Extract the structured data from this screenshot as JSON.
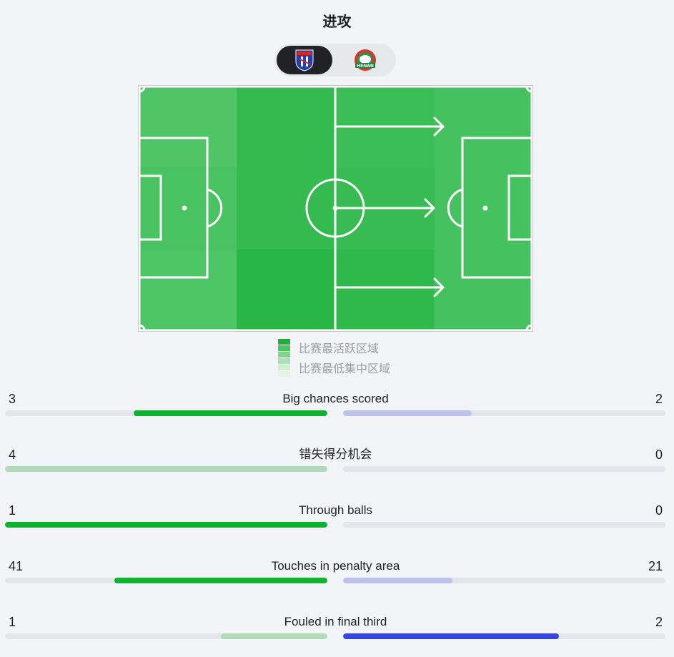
{
  "title": "进攻",
  "teams": {
    "home": {
      "logo_text": "SH",
      "logo_icon": "shanghai-shenhua-crest-icon",
      "active": true
    },
    "away": {
      "logo_text": "HENAN",
      "logo_icon": "henan-fc-crest-icon",
      "active": false
    }
  },
  "pitch": {
    "zone_activity": [
      [
        0.45,
        0.85,
        0.75,
        0.6
      ],
      [
        0.55,
        0.85,
        0.8,
        0.6
      ],
      [
        0.5,
        1.0,
        0.9,
        0.6
      ]
    ],
    "arrows": [
      "top",
      "middle",
      "bottom"
    ]
  },
  "legend": {
    "high_label": "比赛最活跃区域",
    "low_label": "比赛最低集中区域",
    "colors": [
      "#1faf3a",
      "#4cc45f",
      "#7fd48b",
      "#abe2b3",
      "#cfeed4",
      "#e3f4e6"
    ]
  },
  "colors": {
    "home_strong": "#0fb22d",
    "home_weak": "#b2dcb9",
    "away_strong": "#3346e0",
    "away_weak": "#bcc2ea",
    "track": "#e4e5ea"
  },
  "stats": [
    {
      "name": "Big chances scored",
      "home": "3",
      "away": "2",
      "home_pct": 60,
      "away_pct": 40,
      "winner": "home"
    },
    {
      "name": "错失得分机会",
      "home": "4",
      "away": "0",
      "home_pct": 100,
      "away_pct": 0,
      "winner": "none"
    },
    {
      "name": "Through balls",
      "home": "1",
      "away": "0",
      "home_pct": 100,
      "away_pct": 0,
      "winner": "home"
    },
    {
      "name": "Touches in penalty area",
      "home": "41",
      "away": "21",
      "home_pct": 66,
      "away_pct": 34,
      "winner": "home"
    },
    {
      "name": "Fouled in final third",
      "home": "1",
      "away": "2",
      "home_pct": 33,
      "away_pct": 67,
      "winner": "away"
    }
  ]
}
